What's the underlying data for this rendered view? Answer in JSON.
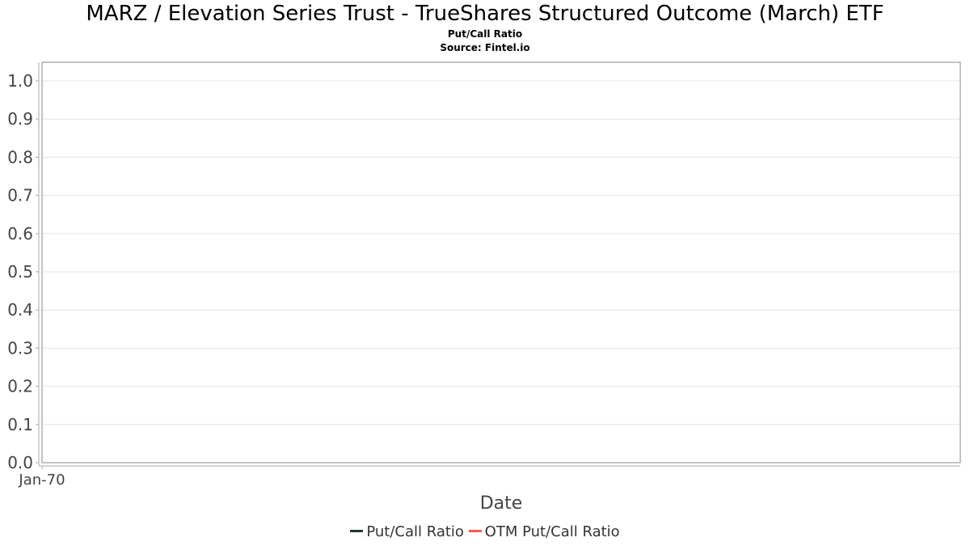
{
  "chart_data": {
    "type": "line",
    "title": "MARZ / Elevation Series Trust - TrueShares Structured Outcome (March) ETF",
    "subtitle": "Put/Call Ratio",
    "source": "Source: Fintel.io",
    "xlabel": "Date",
    "ylabel": "",
    "x_tick_labels": [
      "Jan-70"
    ],
    "y_ticks": [
      "0.0",
      "0.1",
      "0.2",
      "0.3",
      "0.4",
      "0.5",
      "0.6",
      "0.7",
      "0.8",
      "0.9",
      "1.0"
    ],
    "ylim": [
      0,
      1.05
    ],
    "grid": true,
    "legend_position": "bottom",
    "series": [
      {
        "name": "Put/Call Ratio",
        "color": "#1f3a2a",
        "values": []
      },
      {
        "name": "OTM Put/Call Ratio",
        "color": "#ff5a4a",
        "values": []
      }
    ]
  }
}
